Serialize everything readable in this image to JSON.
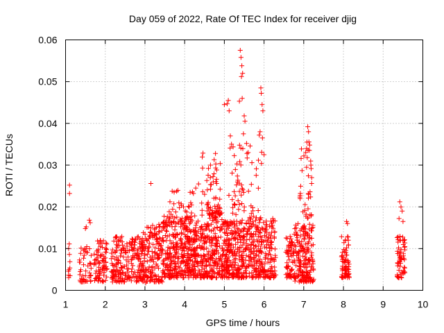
{
  "chart_data": {
    "type": "scatter",
    "title": "Day 059 of 2022, Rate Of TEC Index for receiver djig",
    "xlabel": "GPS time / hours",
    "ylabel": "ROTI / TECUs",
    "xlim": [
      1,
      10
    ],
    "ylim": [
      0,
      0.06
    ],
    "xticks": [
      1,
      2,
      3,
      4,
      5,
      6,
      7,
      8,
      9,
      10
    ],
    "xtick_labels": [
      "1",
      "2",
      "3",
      "4",
      "5",
      "6",
      "7",
      "8",
      "9",
      "10"
    ],
    "yticks": [
      0,
      0.01,
      0.02,
      0.03,
      0.04,
      0.05,
      0.06
    ],
    "ytick_labels": [
      "0",
      "0.01",
      "0.02",
      "0.03",
      "0.04",
      "0.05",
      "0.06"
    ],
    "grid": true,
    "marker": "+",
    "marker_color": "#ff0000",
    "series": [
      {
        "name": "ROTI",
        "clusters": [
          {
            "x": [
              1.05,
              1.12
            ],
            "y": [
              0.003,
              0.012
            ],
            "n": 10
          },
          {
            "x": [
              1.35,
              1.65
            ],
            "y": [
              0.002,
              0.011
            ],
            "n": 45
          },
          {
            "x": [
              1.7,
              2.05
            ],
            "y": [
              0.002,
              0.012
            ],
            "n": 80
          },
          {
            "x": [
              2.15,
              2.95
            ],
            "y": [
              0.002,
              0.013
            ],
            "n": 220
          },
          {
            "x": [
              2.95,
              3.45
            ],
            "y": [
              0.002,
              0.016
            ],
            "n": 160
          },
          {
            "x": [
              3.45,
              4.0
            ],
            "y": [
              0.003,
              0.018
            ],
            "n": 220
          },
          {
            "x": [
              4.0,
              4.55
            ],
            "y": [
              0.003,
              0.018
            ],
            "n": 240
          },
          {
            "x": [
              4.55,
              4.95
            ],
            "y": [
              0.003,
              0.02
            ],
            "n": 180
          },
          {
            "x": [
              4.95,
              5.45
            ],
            "y": [
              0.003,
              0.017
            ],
            "n": 220
          },
          {
            "x": [
              5.45,
              6.3
            ],
            "y": [
              0.003,
              0.018
            ],
            "n": 300
          },
          {
            "x": [
              6.55,
              6.75
            ],
            "y": [
              0.003,
              0.013
            ],
            "n": 60
          },
          {
            "x": [
              6.75,
              7.25
            ],
            "y": [
              0.002,
              0.016
            ],
            "n": 200
          },
          {
            "x": [
              7.95,
              8.15
            ],
            "y": [
              0.003,
              0.013
            ],
            "n": 70
          },
          {
            "x": [
              9.35,
              9.55
            ],
            "y": [
              0.003,
              0.013
            ],
            "n": 60
          },
          {
            "x": [
              3.6,
              4.2
            ],
            "y": [
              0.016,
              0.024
            ],
            "n": 35
          },
          {
            "x": [
              4.4,
              4.9
            ],
            "y": [
              0.018,
              0.033
            ],
            "n": 45
          },
          {
            "x": [
              5.1,
              5.95
            ],
            "y": [
              0.018,
              0.035
            ],
            "n": 55
          },
          {
            "x": [
              6.9,
              7.2
            ],
            "y": [
              0.017,
              0.036
            ],
            "n": 35
          }
        ],
        "points": [
          [
            1.1,
            0.0252
          ],
          [
            1.1,
            0.0232
          ],
          [
            1.5,
            0.0148
          ],
          [
            1.52,
            0.0152
          ],
          [
            1.6,
            0.0168
          ],
          [
            1.62,
            0.0162
          ],
          [
            3.15,
            0.0256
          ],
          [
            3.02,
            0.0018
          ],
          [
            4.22,
            0.0232
          ],
          [
            4.28,
            0.0245
          ],
          [
            4.35,
            0.0255
          ],
          [
            4.6,
            0.0292
          ],
          [
            4.65,
            0.03
          ],
          [
            4.72,
            0.026
          ],
          [
            5.0,
            0.0445
          ],
          [
            5.07,
            0.0447
          ],
          [
            5.1,
            0.0455
          ],
          [
            5.12,
            0.043
          ],
          [
            5.15,
            0.037
          ],
          [
            5.18,
            0.035
          ],
          [
            5.4,
            0.0575
          ],
          [
            5.42,
            0.0558
          ],
          [
            5.44,
            0.0538
          ],
          [
            5.46,
            0.052
          ],
          [
            5.43,
            0.0512
          ],
          [
            5.45,
            0.046
          ],
          [
            5.38,
            0.0453
          ],
          [
            5.5,
            0.0418
          ],
          [
            5.52,
            0.0405
          ],
          [
            5.48,
            0.0375
          ],
          [
            5.56,
            0.0352
          ],
          [
            5.6,
            0.033
          ],
          [
            5.92,
            0.0485
          ],
          [
            5.93,
            0.0472
          ],
          [
            5.95,
            0.0445
          ],
          [
            5.97,
            0.043
          ],
          [
            5.9,
            0.038
          ],
          [
            5.88,
            0.0372
          ],
          [
            5.96,
            0.0365
          ],
          [
            6.0,
            0.0325
          ],
          [
            7.1,
            0.0392
          ],
          [
            7.12,
            0.038
          ],
          [
            7.08,
            0.0355
          ],
          [
            7.15,
            0.0348
          ],
          [
            7.05,
            0.033
          ],
          [
            7.18,
            0.03
          ],
          [
            7.2,
            0.027
          ],
          [
            8.08,
            0.0165
          ],
          [
            8.1,
            0.016
          ],
          [
            9.42,
            0.0212
          ],
          [
            9.45,
            0.02
          ],
          [
            9.48,
            0.019
          ],
          [
            9.4,
            0.0172
          ],
          [
            9.5,
            0.0165
          ]
        ]
      }
    ]
  }
}
